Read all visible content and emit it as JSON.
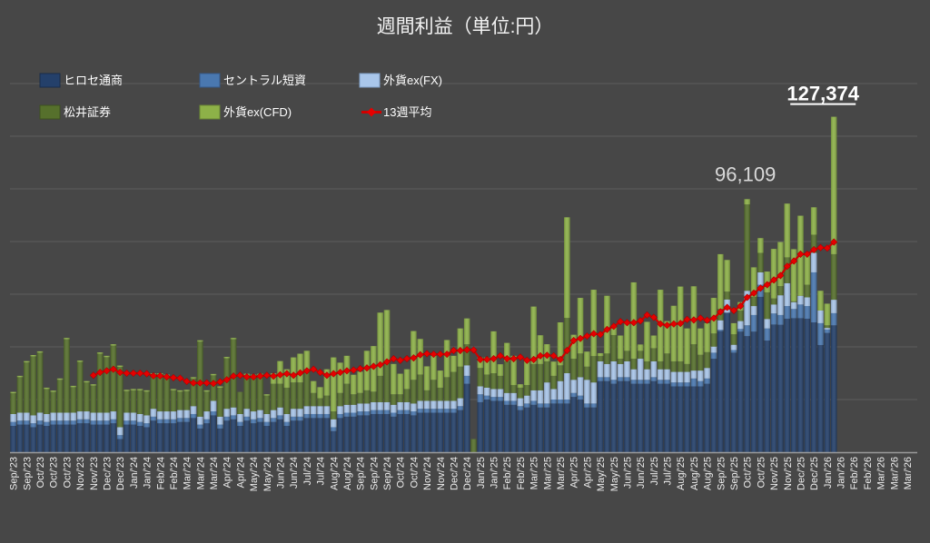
{
  "chart_data": {
    "type": "bar",
    "stacked": true,
    "title": "週間利益（単位:円）",
    "xlabel": "",
    "ylabel": "",
    "values_scale": 1000,
    "ylim": [
      0,
      140
    ],
    "grid_step": 20,
    "grid": true,
    "legend_position": "top-left",
    "x_labels": [
      "Sep/'23",
      "Sep/'23",
      "Oct/'23",
      "Oct/'23",
      "Oct/'23",
      "Nov/'23",
      "Nov/'23",
      "Dec/'23",
      "Dec/'23",
      "Jan/'24",
      "Jan/'24",
      "Feb/'24",
      "Feb/'24",
      "Mar/'24",
      "Mar/'24",
      "Mar/'24",
      "Apr/'24",
      "Apr/'24",
      "May/'24",
      "May/'24",
      "Jun/'24",
      "Jun/'24",
      "Jul/'24",
      "Jul/'24",
      "Aug/'24",
      "Aug/'24",
      "Sep/'24",
      "Sep/'24",
      "Sep/'24",
      "Oct/'24",
      "Oct/'24",
      "Nov/'24",
      "Nov/'24",
      "Dec/'24",
      "Dec/'24",
      "Jan/'25",
      "Jan/'25",
      "Feb/'25",
      "Feb/'25",
      "Mar/'25",
      "Mar/'25",
      "Mar/'25",
      "Apr/'25",
      "Apr/'25",
      "May/'25",
      "May/'25",
      "Jun/'25",
      "Jun/'25",
      "Jul/'25",
      "Jul/'25",
      "Aug/'25",
      "Aug/'25",
      "Aug/'25",
      "Sep/'25",
      "Sep/'25",
      "Oct/'25",
      "Oct/'25",
      "Nov/'25",
      "Nov/'25",
      "Dec/'25",
      "Dec/'25",
      "Jan/'26",
      "Jan/'26",
      "Feb/'26",
      "Feb/'26",
      "Mar/'26",
      "Mar/'26",
      "Mar/'26"
    ],
    "weeks_per_label": 2,
    "series": [
      {
        "name": "ヒロセ通商",
        "color": "#24406a",
        "values": [
          10,
          10.5,
          10.5,
          9.5,
          10.5,
          10,
          10.5,
          10.5,
          10.5,
          10.5,
          11,
          11,
          10.5,
          10.5,
          10.5,
          11,
          5,
          10.5,
          10.5,
          10,
          9.5,
          12,
          11,
          11,
          11,
          11.5,
          11.5,
          13,
          9,
          11,
          14,
          9,
          12,
          12.5,
          10,
          12,
          11,
          11.5,
          10,
          11.5,
          12.5,
          10,
          12,
          12,
          13,
          13,
          13,
          13,
          8,
          13,
          13.5,
          13.5,
          14,
          14,
          14.5,
          14.5,
          14.5,
          13.5,
          14.5,
          14.5,
          14,
          15,
          15,
          15,
          15,
          15,
          15,
          16,
          26,
          0,
          19,
          20,
          19.5,
          19.5,
          18,
          18,
          16,
          17,
          18,
          17,
          17,
          18.5,
          18.5,
          18.5,
          21,
          20,
          17,
          17,
          27,
          27,
          26,
          27,
          27,
          26,
          26,
          26,
          27,
          26,
          26,
          25,
          25,
          25,
          25,
          25,
          26,
          35.5,
          46,
          53,
          37.8,
          45.8,
          44.1,
          45.8,
          59,
          42.4,
          48.5,
          48.4,
          50.7,
          50.9,
          50.9,
          50.7,
          49.3,
          40.7,
          45.3,
          48.2
        ]
      },
      {
        "name": "セントラル短資",
        "color": "#4a78b0",
        "values": [
          1.5,
          1.5,
          1.5,
          1.5,
          1.5,
          1.5,
          1.5,
          1.5,
          1.5,
          1.5,
          1.5,
          1.5,
          1.5,
          1.5,
          1.5,
          1.5,
          1.5,
          1.5,
          1.5,
          1.5,
          1.5,
          1.5,
          1.5,
          1.5,
          1.5,
          1.5,
          1.5,
          1.5,
          1.5,
          1.5,
          1.5,
          1.5,
          1.5,
          1.5,
          1.5,
          1.5,
          1.5,
          1.5,
          1.5,
          1.5,
          1.5,
          1.5,
          1.5,
          1.5,
          1.5,
          1.5,
          1.5,
          1.5,
          1.5,
          1.5,
          1.5,
          1.5,
          1.5,
          1.5,
          1.5,
          1.5,
          1.5,
          1.5,
          1.5,
          1.5,
          1.5,
          1.5,
          1.5,
          1.5,
          1.5,
          1.5,
          1.5,
          1.5,
          3,
          0,
          3,
          1.5,
          1.5,
          1.5,
          1.5,
          1.5,
          1.5,
          1.5,
          1.5,
          1.5,
          1.5,
          1.5,
          1.5,
          1.5,
          1.5,
          1.5,
          1.5,
          1.5,
          1.5,
          1.5,
          1.5,
          1.5,
          1.5,
          1.5,
          1.5,
          1.5,
          1.5,
          1.5,
          1.5,
          1.5,
          1.5,
          1.5,
          3,
          2,
          2,
          2.3,
          0.5,
          0,
          1,
          1,
          4.1,
          6.3,
          4.6,
          4.6,
          4.2,
          3.7,
          4.8,
          3.5,
          5.2,
          4.8,
          19,
          8.3,
          1.3,
          4.6
        ]
      },
      {
        "name": "外貨ex(FX)",
        "color": "#a9c6ea",
        "values": [
          3,
          3,
          3,
          3,
          3,
          3,
          3,
          3,
          3,
          3,
          3,
          3,
          3,
          3,
          3,
          3,
          3,
          3,
          3,
          3,
          3,
          3,
          3,
          3,
          3,
          3,
          3,
          3,
          3,
          3,
          4,
          3,
          3,
          3,
          3,
          3,
          3,
          3,
          3,
          3,
          3,
          3,
          3,
          3,
          3,
          3,
          3,
          3,
          3,
          3,
          3,
          3,
          3,
          3,
          3,
          3,
          3,
          3,
          3,
          3,
          3,
          3,
          3,
          3,
          3,
          3,
          3,
          3,
          4,
          0,
          3,
          3,
          3,
          3,
          3,
          3,
          3,
          3,
          4,
          5,
          8,
          4,
          7,
          10,
          5,
          7,
          9,
          8,
          6,
          5,
          7,
          5,
          6,
          4,
          8,
          4,
          6,
          4,
          4,
          4,
          4,
          4,
          3,
          4,
          4,
          2.3,
          3.6,
          5,
          2,
          3,
          13.1,
          3.4,
          4.7,
          3.6,
          3.4,
          7.5,
          8.7,
          2.6,
          3.3,
          3.3,
          7.4,
          4.8,
          0.6,
          5.1
        ]
      },
      {
        "name": "松井証券",
        "color": "#56702c",
        "values": [
          7.9,
          13.5,
          19.1,
          22.4,
          22.8,
          9.5,
          7.9,
          12.5,
          27.9,
          9.7,
          18.8,
          11,
          10.3,
          22.4,
          21.1,
          25,
          22.9,
          8.2,
          8.5,
          9,
          9,
          13,
          14,
          13.5,
          8,
          7,
          7.2,
          10.5,
          28.5,
          7.5,
          9.7,
          11,
          19.2,
          25.9,
          8.4,
          12,
          13,
          12.8,
          7,
          10,
          9,
          10,
          10,
          10,
          14,
          5,
          3,
          4,
          3,
          5,
          8,
          4,
          4,
          5,
          4,
          10,
          15,
          4,
          3,
          5,
          9,
          10,
          4,
          8,
          5,
          9,
          11,
          12,
          8,
          5,
          7,
          5,
          6,
          5,
          12,
          3,
          4,
          4,
          10,
          10,
          8,
          5,
          6,
          21,
          8,
          9,
          5,
          10,
          2,
          4,
          10,
          2,
          4,
          4,
          3,
          3,
          5,
          3,
          6,
          4,
          4,
          3,
          10,
          6,
          6,
          5,
          4.3,
          3,
          4,
          4,
          32.8,
          3.5,
          7.4,
          10.1,
          2.3,
          3.5,
          9.8,
          0.3,
          0,
          4.8,
          6.9,
          0,
          1,
          17.3
        ]
      },
      {
        "name": "外貨ex(CFD)",
        "color": "#8db148",
        "values": [
          0.5,
          0.5,
          0.5,
          0.5,
          0.5,
          0.5,
          0.5,
          0.5,
          0.5,
          0.5,
          0.5,
          0.5,
          0.5,
          0.5,
          0.5,
          0.5,
          0.5,
          0.5,
          0.5,
          0.5,
          0.5,
          0.5,
          0.5,
          0.5,
          0.5,
          0.5,
          0.5,
          0.5,
          0.5,
          0.5,
          0.5,
          0.5,
          0.5,
          0.5,
          0,
          1.3,
          1,
          1,
          0.5,
          4,
          8.6,
          7,
          9.5,
          10.9,
          7,
          4.5,
          4.2,
          10,
          20.5,
          11.5,
          10.6,
          7.4,
          8.1,
          15,
          17.3,
          24,
          20,
          11.5,
          7.8,
          7.5,
          18.5,
          13.5,
          9.1,
          9.1,
          6.5,
          14.1,
          6.1,
          14.5,
          9.8,
          0,
          4,
          6.5,
          15.9,
          4.4,
          7,
          11.1,
          1.3,
          9.1,
          21.8,
          10.9,
          6.5,
          5.4,
          16.3,
          38.2,
          9.1,
          21.1,
          5.7,
          25.2,
          1.1,
          21.9,
          3.8,
          8.8,
          10.4,
          29,
          2.4,
          15,
          4.8,
          27.2,
          12.3,
          21.1,
          28.4,
          13.5,
          22,
          10,
          11,
          13.5,
          20.8,
          12,
          4.2,
          3.2,
          2,
          11.2,
          5.6,
          7.9,
          18.8,
          16.7,
          20.4,
          19.8,
          30.4,
          11.6,
          10.4,
          7.5,
          8.2,
          52.174
        ]
      }
    ],
    "line": {
      "name": "13週平均",
      "color": "#d00000",
      "start_index": 12,
      "values": [
        29.2,
        30.3,
        30.9,
        31.5,
        30.3,
        30.0,
        30.0,
        30.0,
        29.8,
        29.0,
        29.0,
        28.6,
        28.3,
        28.1,
        26.9,
        26.3,
        26.3,
        26.3,
        26.1,
        26.7,
        27.5,
        28.9,
        29.2,
        28.6,
        28.6,
        28.9,
        29.2,
        28.9,
        29.4,
        29.8,
        29.2,
        30.1,
        30.9,
        31.5,
        30.3,
        29.2,
        29.8,
        30.3,
        30.9,
        31.2,
        31.7,
        32.0,
        32.6,
        33.2,
        34.3,
        35.5,
        34.9,
        35.5,
        35.8,
        37.0,
        37.4,
        37.2,
        37.2,
        37.2,
        38.6,
        38.6,
        38.9,
        38.8,
        35.2,
        35.2,
        35.5,
        36.6,
        35.5,
        35.5,
        36.1,
        34.9,
        35.2,
        36.6,
        36.8,
        36.6,
        35.2,
        38.6,
        42.4,
        43.2,
        44.1,
        45.0,
        44.7,
        46.6,
        47.8,
        49.6,
        49.2,
        49.2,
        49.9,
        52.1,
        51.2,
        48.7,
        48.2,
        48.7,
        48.9,
        50.4,
        50.2,
        50.9,
        50.1,
        50.9,
        53.3,
        55.0,
        53.8,
        55.5,
        58.8,
        60.4,
        62.3,
        63.6,
        65.4,
        67.1,
        70.6,
        72.6,
        75.2,
        75.2,
        76.9,
        77.7,
        77.5,
        79.8
      ]
    },
    "annotations": [
      {
        "text": "96,109",
        "index": 110,
        "style": "plain"
      },
      {
        "text": "127,374",
        "index": 123,
        "style": "bold-underline"
      }
    ]
  }
}
